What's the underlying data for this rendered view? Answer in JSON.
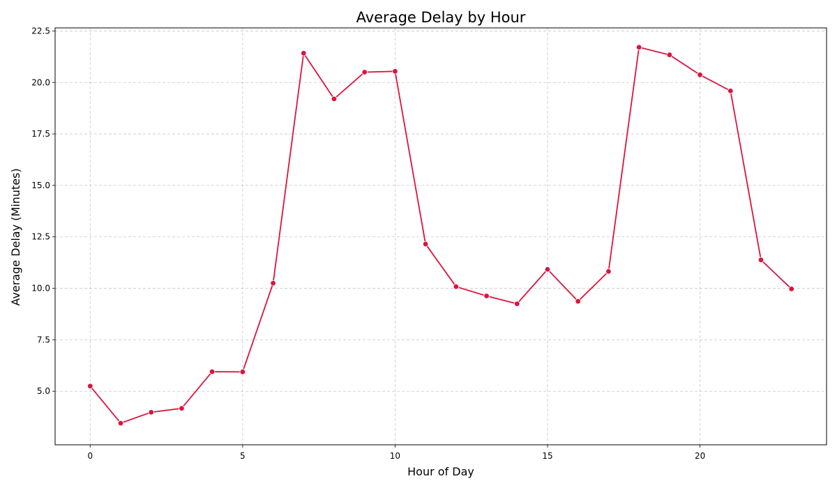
{
  "chart_data": {
    "type": "line",
    "title": "Average Delay by Hour",
    "xlabel": "Hour of Day",
    "ylabel": "Average Delay (Minutes)",
    "xlim": [
      -1.15,
      24.15
    ],
    "ylim": [
      2.4,
      22.65
    ],
    "x_ticks": [
      0,
      5,
      10,
      15,
      20
    ],
    "y_ticks": [
      5.0,
      7.5,
      10.0,
      12.5,
      15.0,
      17.5,
      20.0,
      22.5
    ],
    "y_tick_labels": [
      "5.0",
      "7.5",
      "10.0",
      "12.5",
      "15.0",
      "17.5",
      "20.0",
      "22.5"
    ],
    "grid": true,
    "line_color": "#dc143c",
    "x": [
      0,
      1,
      2,
      3,
      4,
      5,
      6,
      7,
      8,
      9,
      10,
      11,
      12,
      13,
      14,
      15,
      16,
      17,
      18,
      19,
      20,
      21,
      22,
      23
    ],
    "values": [
      5.25,
      3.45,
      3.98,
      4.17,
      5.95,
      5.94,
      10.25,
      21.42,
      19.2,
      20.5,
      20.54,
      12.15,
      10.08,
      9.63,
      9.25,
      10.92,
      9.37,
      10.82,
      21.71,
      21.34,
      20.37,
      19.59,
      11.38,
      9.97
    ]
  }
}
